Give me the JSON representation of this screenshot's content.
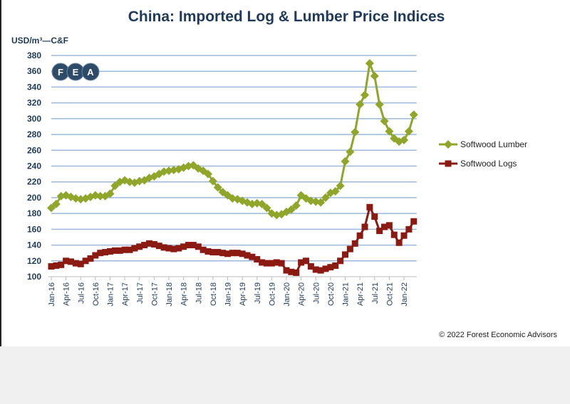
{
  "chart_data": {
    "type": "line",
    "title": "China: Imported Log & Lumber Price Indices",
    "ylabel": "USD/m³—C&F",
    "xlabel": "",
    "ylim": [
      100,
      380
    ],
    "yticks": [
      100,
      120,
      140,
      160,
      180,
      200,
      220,
      240,
      260,
      280,
      300,
      320,
      340,
      360,
      380
    ],
    "grid": true,
    "legend_position": "right",
    "x_start": "Jan-16",
    "x_tick_labels": [
      "Jan-16",
      "Apr-16",
      "Jul-16",
      "Oct-16",
      "Jan-17",
      "Apr-17",
      "Jul-17",
      "Oct-17",
      "Jan-18",
      "Apr-18",
      "Jul-18",
      "Oct-18",
      "Jan-19",
      "Apr-19",
      "Jul-19",
      "Oct-19",
      "Jan-20",
      "Apr-20",
      "Jul-20",
      "Oct-20",
      "Jan-21",
      "Apr-21",
      "Jul-21",
      "Oct-21",
      "Jan-22"
    ],
    "series": [
      {
        "name": "Softwood Lumber",
        "color": "#8fa62a",
        "marker": "diamond",
        "values": [
          187,
          192,
          202,
          203,
          201,
          199,
          198,
          199,
          201,
          203,
          202,
          202,
          205,
          215,
          220,
          222,
          220,
          219,
          221,
          222,
          225,
          227,
          230,
          233,
          234,
          235,
          236,
          238,
          240,
          241,
          237,
          234,
          230,
          221,
          213,
          207,
          203,
          199,
          198,
          196,
          194,
          192,
          193,
          192,
          187,
          180,
          178,
          179,
          182,
          185,
          190,
          203,
          199,
          196,
          195,
          194,
          200,
          206,
          208,
          215,
          246,
          258,
          283,
          318,
          330,
          370,
          354,
          318,
          297,
          284,
          275,
          271,
          273,
          284,
          305
        ]
      },
      {
        "name": "Softwood Logs",
        "color": "#8b1a12",
        "marker": "square",
        "values": [
          113,
          114,
          115,
          120,
          119,
          117,
          116,
          120,
          123,
          127,
          130,
          131,
          132,
          133,
          133,
          134,
          134,
          136,
          138,
          140,
          142,
          141,
          139,
          137,
          136,
          135,
          136,
          138,
          140,
          140,
          138,
          134,
          132,
          131,
          131,
          130,
          129,
          130,
          130,
          129,
          127,
          125,
          122,
          118,
          117,
          117,
          118,
          117,
          108,
          106,
          105,
          118,
          120,
          113,
          109,
          108,
          110,
          112,
          114,
          120,
          128,
          135,
          142,
          152,
          163,
          188,
          176,
          158,
          163,
          165,
          153,
          143,
          152,
          160,
          170
        ]
      }
    ]
  },
  "logo": {
    "letters": [
      "F",
      "E",
      "A"
    ],
    "color": "#2d4a68"
  },
  "credit": "© 2022 Forest Economic Advisors"
}
